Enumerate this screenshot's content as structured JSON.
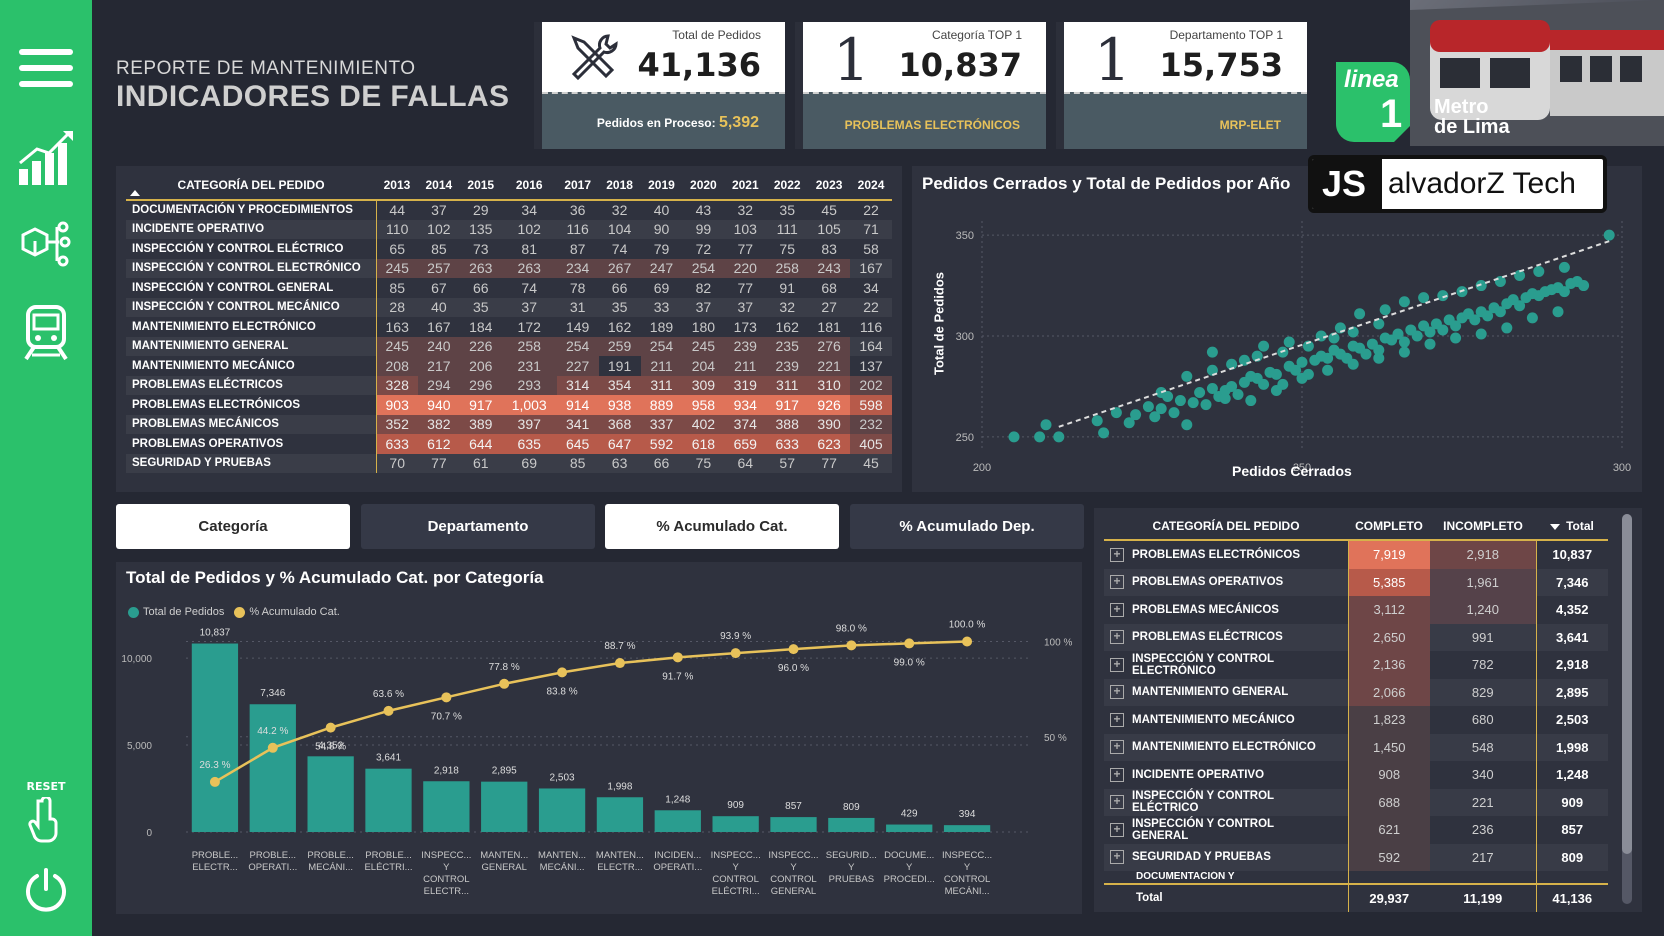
{
  "header": {
    "title_line1": "REPORTE DE MANTENIMIENTO",
    "title_line2": "INDICADORES DE FALLAS"
  },
  "sidebar": {
    "items": [
      {
        "name": "menu-icon"
      },
      {
        "name": "chart-icon"
      },
      {
        "name": "network-icon"
      },
      {
        "name": "train-icon"
      }
    ],
    "reset_label": "RESET"
  },
  "kpis": {
    "total": {
      "label": "Total de Pedidos",
      "value": "41,136",
      "sub_label": "Pedidos en Proceso: ",
      "sub_value": "5,392"
    },
    "cat_top": {
      "label": "Categoría TOP 1",
      "value": "10,837",
      "sub": "PROBLEMAS ELECTRÓNICOS",
      "rank": "1"
    },
    "dep_top": {
      "label": "Departamento TOP 1",
      "value": "15,753",
      "sub": "MRP-ELET",
      "rank": "1"
    }
  },
  "logo": {
    "line_text": "linea",
    "line_num": "1",
    "metro": "Metro",
    "lima": "de Lima",
    "brand_js": "JS",
    "brand_rest": "alvadorZ Tech"
  },
  "matrix": {
    "header_cat": "CATEGORÍA DEL PEDIDO",
    "years": [
      "2013",
      "2014",
      "2015",
      "2016",
      "2017",
      "2018",
      "2019",
      "2020",
      "2021",
      "2022",
      "2023",
      "2024"
    ],
    "rows": [
      {
        "cat": "DOCUMENTACIÓN Y PROCEDIMIENTOS",
        "v": [
          "44",
          "37",
          "29",
          "34",
          "36",
          "32",
          "40",
          "43",
          "32",
          "35",
          "45",
          "22"
        ]
      },
      {
        "cat": "INCIDENTE OPERATIVO",
        "v": [
          "110",
          "102",
          "135",
          "102",
          "116",
          "104",
          "90",
          "99",
          "103",
          "111",
          "105",
          "71"
        ]
      },
      {
        "cat": "INSPECCIÓN Y CONTROL ELÉCTRICO",
        "v": [
          "65",
          "85",
          "73",
          "81",
          "87",
          "74",
          "79",
          "72",
          "77",
          "75",
          "83",
          "58"
        ]
      },
      {
        "cat": "INSPECCIÓN Y CONTROL ELECTRÓNICO",
        "v": [
          "245",
          "257",
          "263",
          "263",
          "234",
          "267",
          "247",
          "254",
          "220",
          "258",
          "243",
          "167"
        ]
      },
      {
        "cat": "INSPECCIÓN Y CONTROL GENERAL",
        "v": [
          "85",
          "67",
          "66",
          "74",
          "78",
          "66",
          "69",
          "82",
          "77",
          "91",
          "68",
          "34"
        ]
      },
      {
        "cat": "INSPECCIÓN Y CONTROL MECÁNICO",
        "v": [
          "28",
          "40",
          "35",
          "37",
          "31",
          "35",
          "33",
          "37",
          "37",
          "32",
          "27",
          "22"
        ]
      },
      {
        "cat": "MANTENIMIENTO ELECTRÓNICO",
        "v": [
          "163",
          "167",
          "184",
          "172",
          "149",
          "162",
          "189",
          "180",
          "173",
          "162",
          "181",
          "116"
        ]
      },
      {
        "cat": "MANTENIMIENTO GENERAL",
        "v": [
          "245",
          "240",
          "226",
          "258",
          "254",
          "259",
          "254",
          "245",
          "239",
          "235",
          "276",
          "164"
        ]
      },
      {
        "cat": "MANTENIMIENTO MECÁNICO",
        "v": [
          "208",
          "217",
          "206",
          "231",
          "227",
          "191",
          "211",
          "204",
          "211",
          "239",
          "221",
          "137"
        ]
      },
      {
        "cat": "PROBLEMAS ELÉCTRICOS",
        "v": [
          "328",
          "294",
          "296",
          "293",
          "314",
          "354",
          "311",
          "309",
          "319",
          "311",
          "310",
          "202"
        ]
      },
      {
        "cat": "PROBLEMAS ELECTRÓNICOS",
        "v": [
          "903",
          "940",
          "917",
          "1,003",
          "914",
          "938",
          "889",
          "958",
          "934",
          "917",
          "926",
          "598"
        ]
      },
      {
        "cat": "PROBLEMAS MECÁNICOS",
        "v": [
          "352",
          "382",
          "389",
          "397",
          "341",
          "368",
          "337",
          "402",
          "374",
          "388",
          "390",
          "232"
        ]
      },
      {
        "cat": "PROBLEMAS OPERATIVOS",
        "v": [
          "633",
          "612",
          "644",
          "635",
          "645",
          "647",
          "592",
          "618",
          "659",
          "633",
          "623",
          "405"
        ]
      },
      {
        "cat": "SEGURIDAD Y PRUEBAS",
        "v": [
          "70",
          "77",
          "61",
          "69",
          "85",
          "63",
          "66",
          "75",
          "64",
          "57",
          "77",
          "45"
        ]
      }
    ]
  },
  "scatter": {
    "title": "Pedidos Cerrados y Total de Pedidos por Año",
    "xlabel": "Pedidos Cerrados",
    "ylabel": "Total de Pedidos",
    "xticks": [
      "200",
      "250",
      "300"
    ],
    "yticks": [
      "250",
      "300",
      "350"
    ]
  },
  "pills": {
    "categoria": "Categoría",
    "departamento": "Departamento",
    "acum_cat": "% Acumulado Cat.",
    "acum_dep": "% Acumulado Dep."
  },
  "pareto": {
    "title": "Total de Pedidos y % Acumulado Cat. por Categoría",
    "legend_bar": "Total de Pedidos",
    "legend_line": "% Acumulado Cat.",
    "y_left_ticks": [
      "0",
      "5,000",
      "10,000"
    ],
    "y_right_ticks": [
      "50 %",
      "100 %"
    ]
  },
  "right_table": {
    "headers": [
      "CATEGORÍA DEL PEDIDO",
      "COMPLETO",
      "INCOMPLETO",
      "Total"
    ],
    "rows": [
      {
        "cat": "PROBLEMAS ELECTRÓNICOS",
        "c": "7,919",
        "i": "2,918",
        "t": "10,837"
      },
      {
        "cat": "PROBLEMAS OPERATIVOS",
        "c": "5,385",
        "i": "1,961",
        "t": "7,346"
      },
      {
        "cat": "PROBLEMAS MECÁNICOS",
        "c": "3,112",
        "i": "1,240",
        "t": "4,352"
      },
      {
        "cat": "PROBLEMAS ELÉCTRICOS",
        "c": "2,650",
        "i": "991",
        "t": "3,641"
      },
      {
        "cat": "INSPECCIÓN Y CONTROL ELECTRÓNICO",
        "c": "2,136",
        "i": "782",
        "t": "2,918"
      },
      {
        "cat": "MANTENIMIENTO GENERAL",
        "c": "2,066",
        "i": "829",
        "t": "2,895"
      },
      {
        "cat": "MANTENIMIENTO MECÁNICO",
        "c": "1,823",
        "i": "680",
        "t": "2,503"
      },
      {
        "cat": "MANTENIMIENTO ELECTRÓNICO",
        "c": "1,450",
        "i": "548",
        "t": "1,998"
      },
      {
        "cat": "INCIDENTE OPERATIVO",
        "c": "908",
        "i": "340",
        "t": "1,248"
      },
      {
        "cat": "INSPECCIÓN Y CONTROL ELÉCTRICO",
        "c": "688",
        "i": "221",
        "t": "909"
      },
      {
        "cat": "INSPECCIÓN Y CONTROL GENERAL",
        "c": "621",
        "i": "236",
        "t": "857"
      },
      {
        "cat": "SEGURIDAD Y PRUEBAS",
        "c": "592",
        "i": "217",
        "t": "809"
      }
    ],
    "partial_row": "DOCUMENTACIÓN Y",
    "total_row": {
      "label": "Total",
      "c": "29,937",
      "i": "11,199",
      "t": "41,136"
    }
  },
  "colors": {
    "sidebar": "#2bc16b",
    "accent_teal": "#2a9d8f",
    "accent_gold": "#e8c25a",
    "heat_high": "#e0735a"
  },
  "chart_data": [
    {
      "type": "scatter",
      "title": "Pedidos Cerrados y Total de Pedidos por Año",
      "xlabel": "Pedidos Cerrados",
      "ylabel": "Total de Pedidos",
      "xlim": [
        200,
        300
      ],
      "ylim": [
        243,
        357
      ],
      "trendline": true,
      "points": [
        [
          205,
          250
        ],
        [
          209,
          250
        ],
        [
          212,
          250
        ],
        [
          210,
          256
        ],
        [
          219,
          252
        ],
        [
          223,
          257
        ],
        [
          224,
          261
        ],
        [
          227,
          260
        ],
        [
          228,
          264
        ],
        [
          230,
          262
        ],
        [
          232,
          256
        ],
        [
          231,
          268
        ],
        [
          233,
          267
        ],
        [
          235,
          266
        ],
        [
          236,
          274
        ],
        [
          237,
          270
        ],
        [
          238,
          273
        ],
        [
          239,
          275
        ],
        [
          240,
          271
        ],
        [
          241,
          277
        ],
        [
          242,
          280
        ],
        [
          243,
          279
        ],
        [
          244,
          276
        ],
        [
          245,
          282
        ],
        [
          246,
          281
        ],
        [
          247,
          276
        ],
        [
          248,
          285
        ],
        [
          249,
          283
        ],
        [
          250,
          287
        ],
        [
          251,
          281
        ],
        [
          252,
          288
        ],
        [
          253,
          290
        ],
        [
          254,
          289
        ],
        [
          255,
          293
        ],
        [
          256,
          291
        ],
        [
          257,
          289
        ],
        [
          258,
          295
        ],
        [
          259,
          294
        ],
        [
          260,
          291
        ],
        [
          261,
          296
        ],
        [
          262,
          293
        ],
        [
          263,
          299
        ],
        [
          264,
          298
        ],
        [
          265,
          301
        ],
        [
          266,
          297
        ],
        [
          267,
          303
        ],
        [
          268,
          300
        ],
        [
          269,
          305
        ],
        [
          270,
          302
        ],
        [
          271,
          306
        ],
        [
          272,
          303
        ],
        [
          273,
          308
        ],
        [
          274,
          305
        ],
        [
          275,
          309
        ],
        [
          276,
          311
        ],
        [
          277,
          308
        ],
        [
          278,
          312
        ],
        [
          279,
          310
        ],
        [
          280,
          314
        ],
        [
          281,
          312
        ],
        [
          282,
          316
        ],
        [
          283,
          318
        ],
        [
          284,
          315
        ],
        [
          285,
          319
        ],
        [
          286,
          321
        ],
        [
          287,
          320
        ],
        [
          288,
          322
        ],
        [
          289,
          323
        ],
        [
          290,
          324
        ],
        [
          291,
          322
        ],
        [
          292,
          326
        ],
        [
          293,
          327
        ],
        [
          294,
          325
        ],
        [
          298,
          350
        ],
        [
          236,
          292
        ],
        [
          241,
          288
        ],
        [
          244,
          295
        ],
        [
          248,
          297
        ],
        [
          253,
          300
        ],
        [
          256,
          304
        ],
        [
          259,
          311
        ],
        [
          263,
          313
        ],
        [
          266,
          317
        ],
        [
          269,
          319
        ],
        [
          272,
          320
        ],
        [
          275,
          322
        ],
        [
          278,
          325
        ],
        [
          281,
          327
        ],
        [
          284,
          330
        ],
        [
          287,
          332
        ],
        [
          291,
          334
        ],
        [
          228,
          272
        ],
        [
          232,
          280
        ],
        [
          236,
          283
        ],
        [
          239,
          286
        ],
        [
          243,
          290
        ],
        [
          247,
          292
        ],
        [
          251,
          295
        ],
        [
          255,
          299
        ],
        [
          258,
          302
        ],
        [
          262,
          306
        ],
        [
          226,
          265
        ],
        [
          229,
          270
        ],
        [
          234,
          272
        ],
        [
          238,
          269
        ],
        [
          242,
          268
        ],
        [
          246,
          273
        ],
        [
          250,
          279
        ],
        [
          254,
          283
        ],
        [
          258,
          286
        ],
        [
          262,
          289
        ],
        [
          266,
          292
        ],
        [
          270,
          296
        ],
        [
          274,
          299
        ],
        [
          278,
          301
        ],
        [
          282,
          304
        ],
        [
          286,
          309
        ],
        [
          290,
          312
        ],
        [
          218,
          258
        ],
        [
          221,
          262
        ]
      ]
    },
    {
      "type": "bar",
      "title": "Total de Pedidos y % Acumulado Cat. por Categoría",
      "categories": [
        "PROBLE... ELECTR...",
        "PROBLE... OPERATI...",
        "PROBLE... MECÁNI...",
        "PROBLE... ELÉCTRI...",
        "INSPECC... Y CONTROL ELECTR...",
        "MANTEN... GENERAL",
        "MANTEN... MECÁNI...",
        "MANTEN... ELECTR...",
        "INCIDEN... OPERATI...",
        "INSPECC... Y CONTROL ELÉCTRI...",
        "INSPECC... Y CONTROL GENERAL",
        "SEGURID... Y PRUEBAS",
        "DOCUME... Y PROCEDI...",
        "INSPECC... Y CONTROL MECÁNI..."
      ],
      "series": [
        {
          "name": "Total de Pedidos",
          "values": [
            10837,
            7346,
            4352,
            3641,
            2918,
            2895,
            2503,
            1998,
            1248,
            909,
            857,
            809,
            429,
            394
          ],
          "labels": [
            "10,837",
            "7,346",
            "4,352",
            "3,641",
            "2,918",
            "2,895",
            "2,503",
            "1,998",
            "1,248",
            "909",
            "857",
            "809",
            "429",
            "394"
          ]
        },
        {
          "name": "% Acumulado Cat.",
          "values": [
            26.3,
            44.2,
            54.8,
            63.6,
            70.7,
            77.8,
            83.8,
            88.7,
            91.7,
            93.9,
            96.0,
            98.0,
            99.0,
            100.0
          ],
          "labels": [
            "26.3 %",
            "44.2 %",
            "54.8 %",
            "63.6 %",
            "70.7 %",
            "77.8 %",
            "83.8 %",
            "88.7 %",
            "91.7 %",
            "93.9 %",
            "96.0 %",
            "98.0 %",
            "99.0 %",
            "100.0 %"
          ]
        }
      ],
      "ylim": [
        0,
        11500
      ],
      "y2lim": [
        0,
        105
      ],
      "legend": "top-left"
    }
  ]
}
